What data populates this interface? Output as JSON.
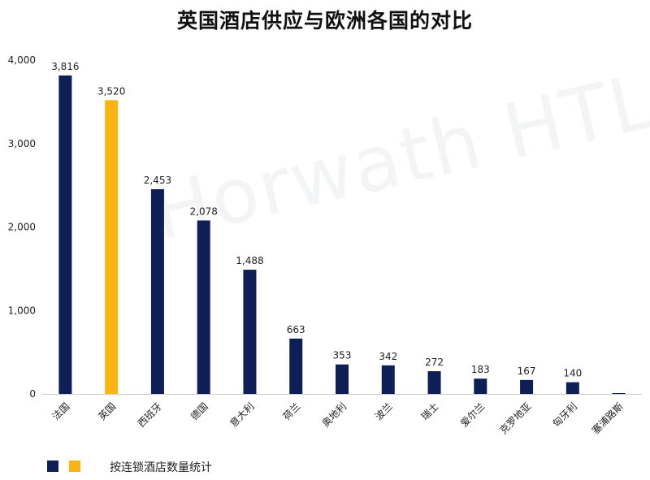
{
  "chart_data": {
    "type": "bar",
    "title": "英国酒店供应与欧洲各国的对比",
    "categories": [
      "法国",
      "英国",
      "西班牙",
      "德国",
      "意大利",
      "荷兰",
      "奥地利",
      "波兰",
      "瑞士",
      "爱尔兰",
      "克罗地亚",
      "匈牙利",
      "塞浦路斯"
    ],
    "values": [
      3816,
      3520,
      2453,
      2078,
      1488,
      663,
      353,
      342,
      272,
      183,
      167,
      140,
      0
    ],
    "value_labels": [
      "3,816",
      "3,520",
      "2,453",
      "2,078",
      "1,488",
      "663",
      "353",
      "342",
      "272",
      "183",
      "167",
      "140",
      ""
    ],
    "highlight_index": 1,
    "colors": {
      "default": "#0d1f56",
      "highlight": "#fbb40f",
      "axis": "#cccccc",
      "text": "#222222"
    },
    "ylim": [
      0,
      4000
    ],
    "yticks": [
      0,
      1000,
      2000,
      3000,
      4000
    ],
    "ytick_labels": [
      "0",
      "1,000",
      "2,000",
      "3,000",
      "4,000"
    ],
    "grid": false,
    "legend_position": "bottom-left",
    "legend": {
      "label": "按连锁酒店数量统计"
    }
  },
  "watermark": "Horwath HTL"
}
